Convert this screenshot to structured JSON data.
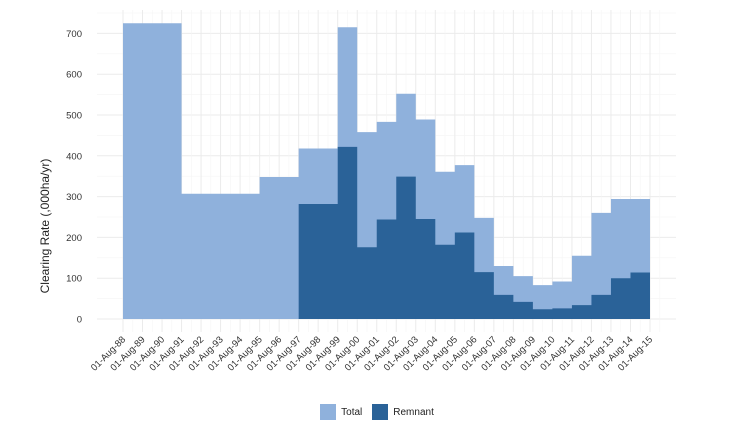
{
  "chart_data": {
    "type": "area",
    "step": true,
    "ylabel": "Clearing Rate (,000ha/yr)",
    "xlabel": "",
    "ylim": [
      0,
      760
    ],
    "yticks": [
      0,
      100,
      200,
      300,
      400,
      500,
      600,
      700
    ],
    "grid": true,
    "legend_position": "bottom",
    "categories": [
      "01-Aug-88",
      "01-Aug-89",
      "01-Aug-90",
      "01-Aug-91",
      "01-Aug-92",
      "01-Aug-93",
      "01-Aug-94",
      "01-Aug-95",
      "01-Aug-96",
      "01-Aug-97",
      "01-Aug-98",
      "01-Aug-99",
      "01-Aug-00",
      "01-Aug-01",
      "01-Aug-02",
      "01-Aug-03",
      "01-Aug-04",
      "01-Aug-05",
      "01-Aug-06",
      "01-Aug-07",
      "01-Aug-08",
      "01-Aug-09",
      "01-Aug-10",
      "01-Aug-11",
      "01-Aug-12",
      "01-Aug-13",
      "01-Aug-14",
      "01-Aug-15"
    ],
    "series": [
      {
        "name": "Total",
        "color": "#8fb1dc",
        "values": [
          725,
          725,
          725,
          307,
          307,
          307,
          307,
          348,
          348,
          418,
          418,
          715,
          458,
          483,
          552,
          489,
          361,
          377,
          248,
          130,
          105,
          83,
          92,
          155,
          260,
          294,
          294,
          294
        ]
      },
      {
        "name": "Remnant",
        "color": "#2a6298",
        "values": [
          0,
          0,
          0,
          0,
          0,
          0,
          0,
          0,
          0,
          282,
          282,
          422,
          176,
          244,
          349,
          245,
          182,
          212,
          115,
          59,
          42,
          24,
          26,
          34,
          59,
          100,
          114,
          114
        ]
      }
    ]
  }
}
